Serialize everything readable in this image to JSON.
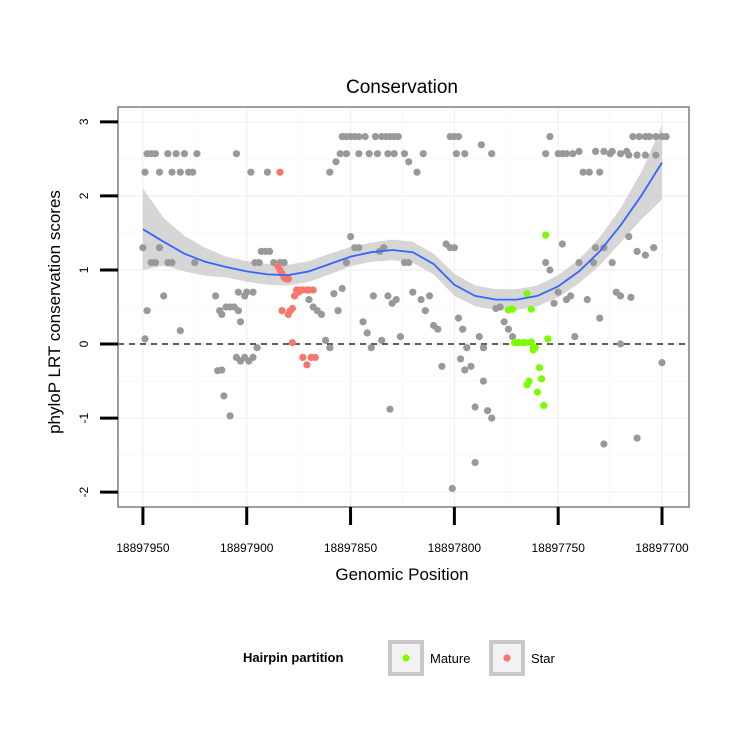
{
  "chart_data": {
    "type": "scatter",
    "title": "Conservation",
    "xlabel": "Genomic Position",
    "ylabel": "phyloP LRT conservation scores",
    "x_reversed": true,
    "xlim": [
      18897962,
      18897687
    ],
    "ylim": [
      -2.2,
      3.2
    ],
    "x_ticks": [
      18897950,
      18897900,
      18897850,
      18897800,
      18897750,
      18897700
    ],
    "x_tick_labels": [
      "18897950",
      "18897900",
      "18897850",
      "18897800",
      "18897750",
      "18897700"
    ],
    "y_ticks": [
      -2,
      -1,
      0,
      1,
      2,
      3
    ],
    "y_tick_labels": [
      "-2",
      "-1",
      "0",
      "1",
      "2",
      "3"
    ],
    "grid": true,
    "reference_line": {
      "y": 0,
      "style": "dashed"
    },
    "legend": {
      "title": "Hairpin partition",
      "placement": "bottom",
      "entries": [
        {
          "label": "Mature",
          "color": "#7cfc00"
        },
        {
          "label": "Star",
          "color": "#f8766d"
        }
      ]
    },
    "colors": {
      "other": "#999999",
      "mature": "#7cfc00",
      "star": "#f8766d",
      "smooth_line": "#3366ff",
      "confidence_band": "#c8c8c8",
      "panel_border": "#7f7f7f"
    },
    "series": [
      {
        "group": "other",
        "points": [
          [
            18897949,
            2.32
          ],
          [
            18897948,
            2.57
          ],
          [
            18897946,
            2.57
          ],
          [
            18897944,
            2.57
          ],
          [
            18897942,
            2.32
          ],
          [
            18897938,
            2.57
          ],
          [
            18897936,
            2.32
          ],
          [
            18897934,
            2.57
          ],
          [
            18897932,
            2.32
          ],
          [
            18897930,
            2.57
          ],
          [
            18897928,
            2.32
          ],
          [
            18897926,
            2.32
          ],
          [
            18897924,
            2.57
          ],
          [
            18897905,
            2.57
          ],
          [
            18897898,
            2.32
          ],
          [
            18897890,
            2.32
          ],
          [
            18897854,
            2.8
          ],
          [
            18897852,
            2.8
          ],
          [
            18897850,
            2.8
          ],
          [
            18897848,
            2.8
          ],
          [
            18897846,
            2.8
          ],
          [
            18897843,
            2.8
          ],
          [
            18897852,
            2.57
          ],
          [
            18897846,
            2.57
          ],
          [
            18897841,
            2.57
          ],
          [
            18897838,
            2.8
          ],
          [
            18897837,
            2.57
          ],
          [
            18897855,
            2.57
          ],
          [
            18897857,
            2.46
          ],
          [
            18897860,
            2.32
          ],
          [
            18897835,
            2.8
          ],
          [
            18897833,
            2.8
          ],
          [
            18897831,
            2.8
          ],
          [
            18897829,
            2.8
          ],
          [
            18897827,
            2.8
          ],
          [
            18897832,
            2.57
          ],
          [
            18897829,
            2.57
          ],
          [
            18897824,
            2.57
          ],
          [
            18897822,
            2.46
          ],
          [
            18897818,
            2.32
          ],
          [
            18897815,
            2.57
          ],
          [
            18897802,
            2.8
          ],
          [
            18897800,
            2.8
          ],
          [
            18897798,
            2.8
          ],
          [
            18897799,
            2.57
          ],
          [
            18897795,
            2.57
          ],
          [
            18897787,
            2.69
          ],
          [
            18897782,
            2.57
          ],
          [
            18897756,
            2.57
          ],
          [
            18897754,
            2.8
          ],
          [
            18897750,
            2.57
          ],
          [
            18897748,
            2.57
          ],
          [
            18897746,
            2.57
          ],
          [
            18897743,
            2.57
          ],
          [
            18897740,
            2.6
          ],
          [
            18897738,
            2.32
          ],
          [
            18897735,
            2.32
          ],
          [
            18897732,
            2.6
          ],
          [
            18897730,
            2.32
          ],
          [
            18897728,
            2.6
          ],
          [
            18897725,
            2.57
          ],
          [
            18897720,
            2.57
          ],
          [
            18897717,
            2.6
          ],
          [
            18897714,
            2.8
          ],
          [
            18897711,
            2.8
          ],
          [
            18897708,
            2.8
          ],
          [
            18897706,
            2.8
          ],
          [
            18897703,
            2.8
          ],
          [
            18897700,
            2.8
          ],
          [
            18897698,
            2.8
          ],
          [
            18897703,
            2.55
          ],
          [
            18897708,
            2.55
          ],
          [
            18897712,
            2.55
          ],
          [
            18897716,
            2.55
          ],
          [
            18897724,
            2.6
          ],
          [
            18897950,
            1.3
          ],
          [
            18897946,
            1.1
          ],
          [
            18897944,
            1.1
          ],
          [
            18897942,
            1.3
          ],
          [
            18897940,
            0.65
          ],
          [
            18897938,
            1.1
          ],
          [
            18897948,
            0.45
          ],
          [
            18897949,
            0.07
          ],
          [
            18897936,
            1.1
          ],
          [
            18897925,
            1.1
          ],
          [
            18897932,
            0.18
          ],
          [
            18897915,
            0.65
          ],
          [
            18897913,
            0.45
          ],
          [
            18897912,
            0.4
          ],
          [
            18897910,
            0.5
          ],
          [
            18897908,
            0.5
          ],
          [
            18897906,
            0.5
          ],
          [
            18897904,
            0.45
          ],
          [
            18897903,
            0.3
          ],
          [
            18897901,
            0.65
          ],
          [
            18897900,
            0.7
          ],
          [
            18897897,
            0.7
          ],
          [
            18897896,
            1.1
          ],
          [
            18897894,
            1.1
          ],
          [
            18897893,
            1.25
          ],
          [
            18897891,
            1.25
          ],
          [
            18897889,
            1.25
          ],
          [
            18897887,
            1.1
          ],
          [
            18897884,
            1.1
          ],
          [
            18897882,
            1.1
          ],
          [
            18897880,
            0.88
          ],
          [
            18897905,
            -0.18
          ],
          [
            18897903,
            -0.23
          ],
          [
            18897901,
            -0.18
          ],
          [
            18897899,
            -0.23
          ],
          [
            18897897,
            -0.18
          ],
          [
            18897895,
            -0.05
          ],
          [
            18897911,
            -0.7
          ],
          [
            18897912,
            -0.35
          ],
          [
            18897914,
            -0.36
          ],
          [
            18897908,
            -0.97
          ],
          [
            18897904,
            0.7
          ],
          [
            18897870,
            0.6
          ],
          [
            18897868,
            0.5
          ],
          [
            18897866,
            0.45
          ],
          [
            18897864,
            0.4
          ],
          [
            18897862,
            0.05
          ],
          [
            18897860,
            -0.05
          ],
          [
            18897858,
            0.68
          ],
          [
            18897856,
            0.45
          ],
          [
            18897854,
            0.75
          ],
          [
            18897852,
            1.1
          ],
          [
            18897850,
            1.45
          ],
          [
            18897848,
            1.3
          ],
          [
            18897846,
            1.3
          ],
          [
            18897844,
            0.3
          ],
          [
            18897842,
            0.15
          ],
          [
            18897840,
            -0.05
          ],
          [
            18897839,
            0.65
          ],
          [
            18897836,
            1.25
          ],
          [
            18897834,
            1.3
          ],
          [
            18897832,
            0.65
          ],
          [
            18897830,
            0.55
          ],
          [
            18897828,
            0.6
          ],
          [
            18897826,
            0.1
          ],
          [
            18897824,
            1.1
          ],
          [
            18897822,
            1.1
          ],
          [
            18897820,
            0.7
          ],
          [
            18897835,
            0.05
          ],
          [
            18897831,
            -0.88
          ],
          [
            18897816,
            0.6
          ],
          [
            18897814,
            0.45
          ],
          [
            18897812,
            0.65
          ],
          [
            18897810,
            0.25
          ],
          [
            18897808,
            0.2
          ],
          [
            18897806,
            -0.3
          ],
          [
            18897804,
            1.35
          ],
          [
            18897802,
            1.3
          ],
          [
            18897800,
            1.3
          ],
          [
            18897798,
            0.35
          ],
          [
            18897796,
            0.2
          ],
          [
            18897794,
            -0.05
          ],
          [
            18897792,
            -0.3
          ],
          [
            18897790,
            -0.85
          ],
          [
            18897788,
            0.1
          ],
          [
            18897786,
            -0.05
          ],
          [
            18897784,
            -0.9
          ],
          [
            18897782,
            -1.0
          ],
          [
            18897780,
            0.48
          ],
          [
            18897778,
            0.5
          ],
          [
            18897776,
            0.3
          ],
          [
            18897774,
            0.2
          ],
          [
            18897772,
            0.1
          ],
          [
            18897801,
            -1.95
          ],
          [
            18897795,
            -0.35
          ],
          [
            18897797,
            -0.2
          ],
          [
            18897790,
            -1.6
          ],
          [
            18897786,
            -0.5
          ],
          [
            18897756,
            1.1
          ],
          [
            18897754,
            1.0
          ],
          [
            18897752,
            0.55
          ],
          [
            18897750,
            0.7
          ],
          [
            18897748,
            1.35
          ],
          [
            18897746,
            0.6
          ],
          [
            18897744,
            0.65
          ],
          [
            18897742,
            0.1
          ],
          [
            18897740,
            1.1
          ],
          [
            18897736,
            0.6
          ],
          [
            18897732,
            1.3
          ],
          [
            18897728,
            1.3
          ],
          [
            18897724,
            1.1
          ],
          [
            18897722,
            0.7
          ],
          [
            18897720,
            0.65
          ],
          [
            18897716,
            1.45
          ],
          [
            18897712,
            1.25
          ],
          [
            18897708,
            1.2
          ],
          [
            18897704,
            1.3
          ],
          [
            18897730,
            0.35
          ],
          [
            18897720,
            0.0
          ],
          [
            18897700,
            -0.25
          ],
          [
            18897715,
            0.63
          ],
          [
            18897728,
            -1.35
          ],
          [
            18897712,
            -1.27
          ],
          [
            18897733,
            1.1
          ]
        ]
      },
      {
        "group": "mature",
        "points": [
          [
            18897774,
            0.46
          ],
          [
            18897773,
            0.47
          ],
          [
            18897772,
            0.47
          ],
          [
            18897771,
            0.02
          ],
          [
            18897769,
            0.02
          ],
          [
            18897767,
            0.02
          ],
          [
            18897766,
            0.02
          ],
          [
            18897765,
            0.68
          ],
          [
            18897763,
            0.47
          ],
          [
            18897762,
            -0.05
          ],
          [
            18897761,
            -0.05
          ],
          [
            18897760,
            -0.65
          ],
          [
            18897759,
            -0.32
          ],
          [
            18897758,
            -0.47
          ],
          [
            18897757,
            -0.83
          ],
          [
            18897756,
            1.47
          ],
          [
            18897755,
            0.07
          ],
          [
            18897764,
            -0.5
          ],
          [
            18897765,
            -0.55
          ],
          [
            18897763,
            0.03
          ],
          [
            18897770,
            0.02
          ],
          [
            18897762,
            -0.08
          ]
        ]
      },
      {
        "group": "star",
        "points": [
          [
            18897884,
            2.32
          ],
          [
            18897885,
            1.05
          ],
          [
            18897884,
            1.0
          ],
          [
            18897883,
            0.95
          ],
          [
            18897882,
            0.9
          ],
          [
            18897881,
            0.88
          ],
          [
            18897880,
            0.88
          ],
          [
            18897879,
            0.45
          ],
          [
            18897876,
            0.73
          ],
          [
            18897874,
            0.73
          ],
          [
            18897873,
            0.73
          ],
          [
            18897871,
            0.73
          ],
          [
            18897870,
            0.73
          ],
          [
            18897868,
            0.73
          ],
          [
            18897878,
            0.02
          ],
          [
            18897873,
            -0.18
          ],
          [
            18897871,
            -0.28
          ],
          [
            18897869,
            -0.18
          ],
          [
            18897867,
            -0.18
          ],
          [
            18897883,
            0.45
          ],
          [
            18897880,
            0.4
          ],
          [
            18897878,
            0.48
          ],
          [
            18897877,
            0.65
          ],
          [
            18897875,
            0.7
          ]
        ]
      }
    ],
    "smooth": {
      "x": [
        18897950,
        18897940,
        18897930,
        18897920,
        18897910,
        18897900,
        18897890,
        18897880,
        18897870,
        18897860,
        18897850,
        18897840,
        18897830,
        18897820,
        18897810,
        18897800,
        18897790,
        18897780,
        18897770,
        18897760,
        18897750,
        18897740,
        18897730,
        18897720,
        18897710,
        18897700
      ],
      "y": [
        1.55,
        1.38,
        1.22,
        1.11,
        1.04,
        0.98,
        0.94,
        0.93,
        0.98,
        1.08,
        1.18,
        1.24,
        1.27,
        1.24,
        1.08,
        0.8,
        0.65,
        0.6,
        0.6,
        0.65,
        0.78,
        0.98,
        1.25,
        1.6,
        2.0,
        2.45
      ],
      "band_upper": [
        2.1,
        1.7,
        1.46,
        1.3,
        1.18,
        1.12,
        1.08,
        1.07,
        1.12,
        1.22,
        1.31,
        1.37,
        1.41,
        1.38,
        1.22,
        0.95,
        0.79,
        0.74,
        0.74,
        0.79,
        0.93,
        1.14,
        1.44,
        1.83,
        2.32,
        2.95
      ],
      "band_lower": [
        1.0,
        1.06,
        0.98,
        0.92,
        0.9,
        0.84,
        0.8,
        0.79,
        0.84,
        0.94,
        1.05,
        1.11,
        1.13,
        1.1,
        0.94,
        0.65,
        0.51,
        0.46,
        0.46,
        0.51,
        0.63,
        0.82,
        1.06,
        1.37,
        1.68,
        1.95
      ]
    }
  }
}
